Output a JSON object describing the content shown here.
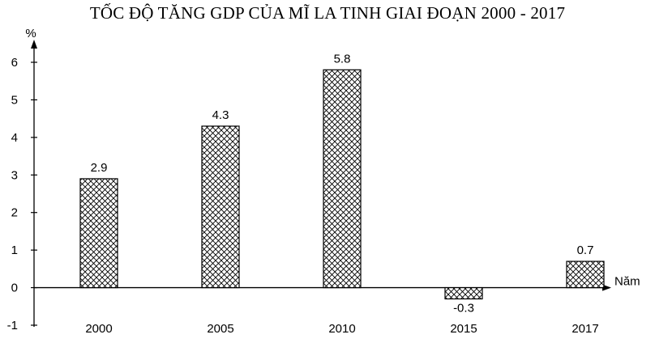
{
  "chart_data": {
    "type": "bar",
    "title": "TỐC ĐỘ TĂNG GDP CỦA MĨ LA TINH GIAI ĐOẠN 2000 - 2017",
    "ylabel": "%",
    "xlabel": "Năm",
    "categories": [
      "2000",
      "2005",
      "2010",
      "2015",
      "2017"
    ],
    "values": [
      2.9,
      4.3,
      5.8,
      -0.3,
      0.7
    ],
    "data_labels": [
      "2.9",
      "4.3",
      "5.8",
      "-0.3",
      "0.7"
    ],
    "ylim": [
      -1,
      6
    ],
    "yticks": [
      -1,
      0,
      1,
      2,
      3,
      4,
      5,
      6
    ],
    "ytick_labels": [
      "-1",
      "0",
      "1",
      "2",
      "3",
      "4",
      "5",
      "6"
    ],
    "grid": false,
    "legend": "none",
    "bar_fill": "crosshatch",
    "bar_color": "#000000"
  }
}
